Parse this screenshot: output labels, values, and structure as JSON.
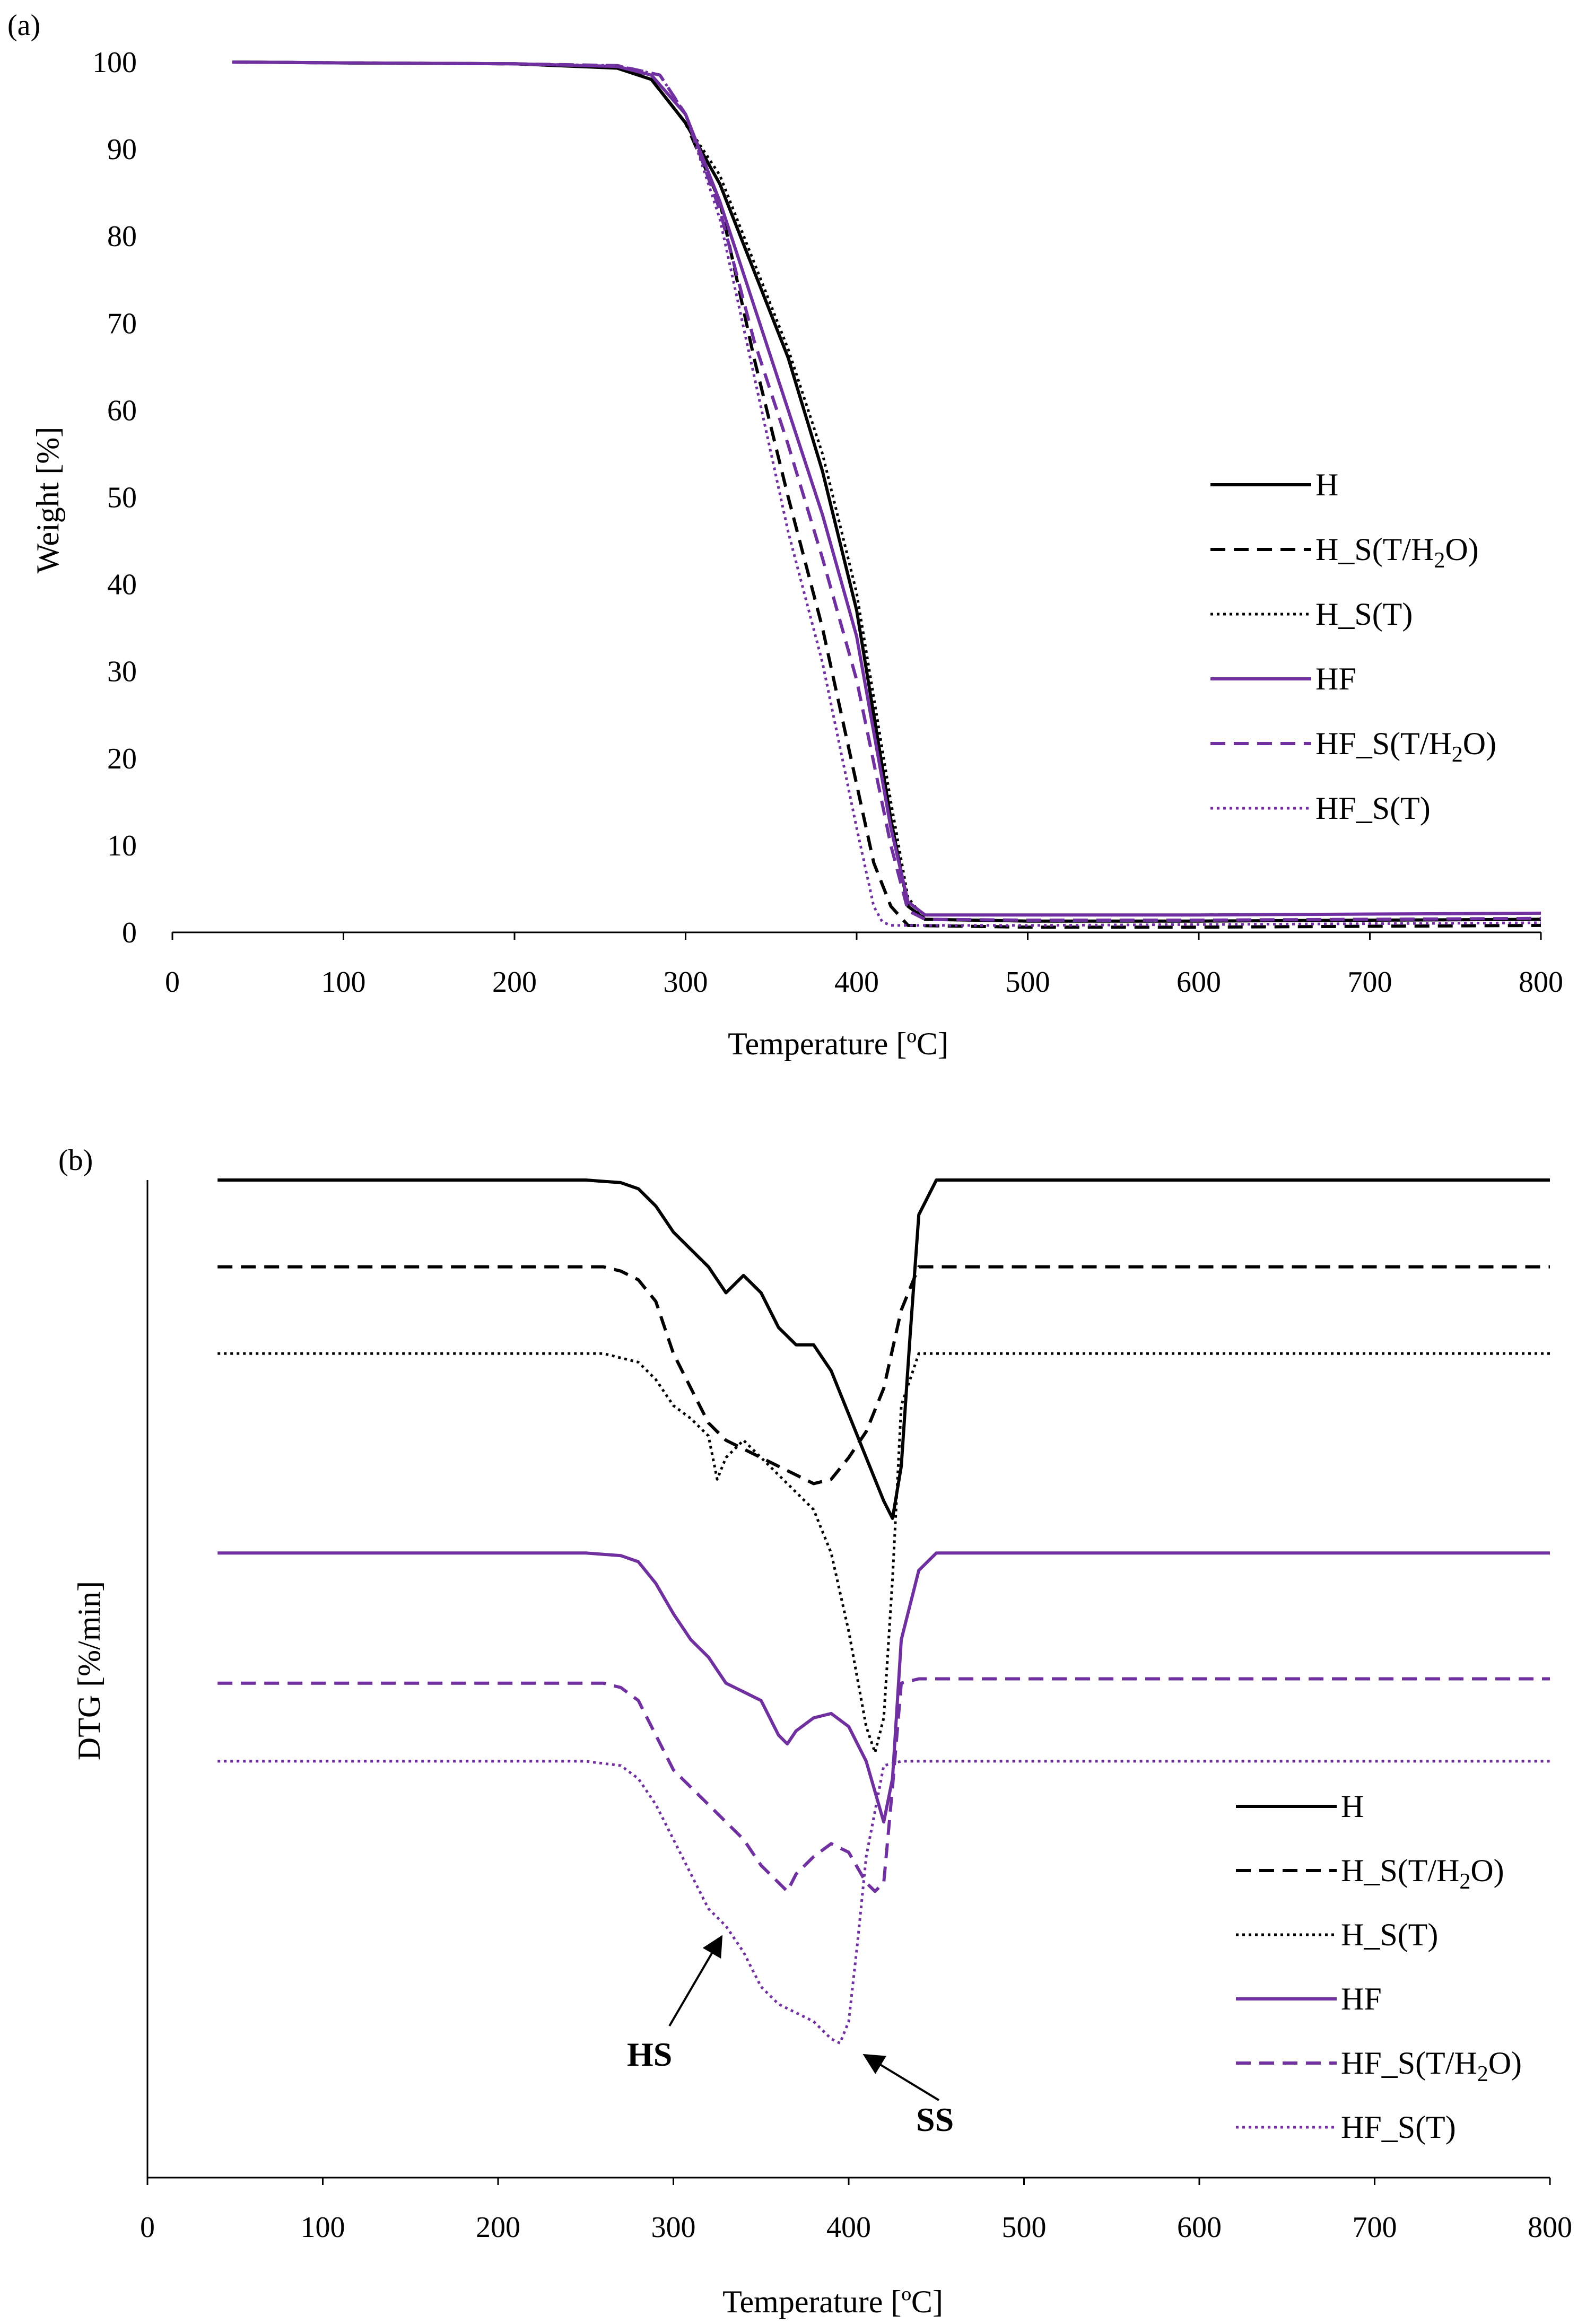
{
  "colors": {
    "black": "#000000",
    "purple": "#7030A0"
  },
  "panels": [
    {
      "id": "a",
      "label": "(a)",
      "ylabel": "Weight [%]",
      "xlabel": "Temperature [ºC]"
    },
    {
      "id": "b",
      "label": "(b)",
      "ylabel": "DTG [%/min]",
      "xlabel": "Temperature [ºC]",
      "annotations": [
        "HS",
        "SS"
      ]
    }
  ],
  "legend": [
    {
      "label": "H",
      "color": "black",
      "dash": "solid"
    },
    {
      "label": "H_S(T/H",
      "sub": "2",
      "tail": "O)",
      "color": "black",
      "dash": "dash"
    },
    {
      "label": "H_S(T)",
      "color": "black",
      "dash": "dot"
    },
    {
      "label": "HF",
      "color": "purple",
      "dash": "solid"
    },
    {
      "label": "HF_S(T/H",
      "sub": "2",
      "tail": "O)",
      "color": "purple",
      "dash": "dash"
    },
    {
      "label": "HF_S(T)",
      "color": "purple",
      "dash": "dot"
    }
  ],
  "chart_data": [
    {
      "type": "line",
      "panel": "a",
      "xlabel": "Temperature [ºC]",
      "ylabel": "Weight [%]",
      "xlim": [
        0,
        800
      ],
      "ylim": [
        0,
        100
      ],
      "xticks": [
        0,
        100,
        200,
        300,
        400,
        500,
        600,
        700,
        800
      ],
      "yticks": [
        0,
        10,
        20,
        30,
        40,
        50,
        60,
        70,
        80,
        90,
        100
      ],
      "grid": false,
      "legend_position": "right",
      "series": [
        {
          "name": "H",
          "color": "black",
          "dash": "solid",
          "x": [
            35,
            100,
            200,
            260,
            280,
            300,
            320,
            340,
            360,
            380,
            400,
            420,
            430,
            440,
            500,
            600,
            700,
            800
          ],
          "y": [
            100,
            99.9,
            99.8,
            99.3,
            98,
            93,
            86,
            76,
            66,
            53,
            37,
            13,
            3,
            1.5,
            1.3,
            1.3,
            1.4,
            1.5
          ]
        },
        {
          "name": "H_S(T/H2O)",
          "color": "black",
          "dash": "dash",
          "x": [
            35,
            100,
            200,
            260,
            280,
            300,
            320,
            340,
            360,
            380,
            400,
            410,
            420,
            430,
            500,
            600,
            700,
            800
          ],
          "y": [
            100,
            99.9,
            99.8,
            99.4,
            98,
            93,
            84,
            66,
            50,
            35,
            17,
            8,
            3,
            0.8,
            0.6,
            0.6,
            0.7,
            0.8
          ]
        },
        {
          "name": "H_S(T)",
          "color": "black",
          "dash": "dot",
          "x": [
            35,
            100,
            200,
            260,
            280,
            300,
            320,
            340,
            360,
            380,
            400,
            420,
            430,
            440,
            500,
            600,
            700,
            800
          ],
          "y": [
            100,
            99.9,
            99.8,
            99.4,
            98,
            93,
            87,
            77,
            67,
            55,
            39,
            15,
            4,
            1.5,
            1.3,
            1.3,
            1.4,
            1.5
          ]
        },
        {
          "name": "HF",
          "color": "purple",
          "dash": "solid",
          "x": [
            35,
            100,
            200,
            260,
            280,
            300,
            320,
            340,
            360,
            380,
            400,
            420,
            430,
            440,
            500,
            600,
            700,
            800
          ],
          "y": [
            100,
            99.9,
            99.8,
            99.5,
            98.5,
            94,
            84,
            72,
            60,
            48,
            34,
            12,
            3.5,
            2,
            2,
            2,
            2.1,
            2.2
          ]
        },
        {
          "name": "HF_S(T/H2O)",
          "color": "purple",
          "dash": "dash",
          "x": [
            35,
            100,
            200,
            260,
            285,
            300,
            320,
            340,
            360,
            380,
            400,
            420,
            430,
            440,
            500,
            600,
            700,
            800
          ],
          "y": [
            100,
            99.9,
            99.8,
            99.6,
            98.5,
            94,
            83,
            68,
            56,
            43,
            29,
            10,
            2.5,
            1.5,
            1.4,
            1.4,
            1.5,
            1.6
          ]
        },
        {
          "name": "HF_S(T)",
          "color": "purple",
          "dash": "dot",
          "x": [
            35,
            100,
            200,
            260,
            285,
            300,
            320,
            340,
            360,
            380,
            400,
            410,
            415,
            420,
            500,
            600,
            700,
            800
          ],
          "y": [
            100,
            99.9,
            99.8,
            99.6,
            98.5,
            94,
            82,
            64,
            46,
            31,
            12,
            3,
            1.2,
            0.8,
            0.8,
            0.9,
            1,
            1.1
          ]
        }
      ]
    },
    {
      "type": "line",
      "panel": "b",
      "xlabel": "Temperature [ºC]",
      "ylabel": "DTG [%/min]",
      "xlim": [
        0,
        800
      ],
      "xticks": [
        0,
        100,
        200,
        300,
        400,
        500,
        600,
        700,
        800
      ],
      "y_units": "relative (curves vertically offset, no y tick labels)",
      "ylim": [
        -115,
        0
      ],
      "grid": false,
      "legend_position": "bottom-right",
      "annotations": [
        {
          "text": "HS",
          "points_to_temperature": 325
        },
        {
          "text": "SS",
          "points_to_temperature": 403
        }
      ],
      "series": [
        {
          "name": "H",
          "color": "black",
          "dash": "solid",
          "x": [
            40,
            250,
            270,
            280,
            290,
            300,
            310,
            320,
            330,
            340,
            350,
            360,
            370,
            380,
            390,
            400,
            410,
            420,
            425,
            430,
            435,
            440,
            450,
            500,
            800
          ],
          "y": [
            0,
            0,
            -0.3,
            -1,
            -3,
            -6,
            -8,
            -10,
            -13,
            -11,
            -13,
            -17,
            -19,
            -19,
            -22,
            -27,
            -32,
            -37,
            -39,
            -33,
            -18,
            -4,
            0,
            0,
            0
          ]
        },
        {
          "name": "H_S(T/H2O)",
          "color": "black",
          "dash": "dash",
          "x": [
            40,
            260,
            270,
            280,
            290,
            300,
            310,
            320,
            330,
            340,
            350,
            360,
            370,
            380,
            390,
            400,
            410,
            420,
            430,
            440,
            800
          ],
          "y": [
            -10,
            -10,
            -10.5,
            -11.5,
            -14,
            -20,
            -24,
            -28,
            -30,
            -31,
            -32,
            -33,
            -34,
            -35,
            -34.5,
            -32,
            -29,
            -24,
            -15,
            -10,
            -10
          ]
        },
        {
          "name": "H_S(T)",
          "color": "black",
          "dash": "dot",
          "x": [
            40,
            260,
            280,
            290,
            300,
            310,
            320,
            325,
            330,
            340,
            350,
            360,
            370,
            380,
            390,
            400,
            410,
            415,
            420,
            425,
            430,
            440,
            800
          ],
          "y": [
            -20,
            -20,
            -21,
            -23,
            -26,
            -27.5,
            -29.5,
            -34.5,
            -32,
            -30,
            -32,
            -34,
            -36,
            -38,
            -43,
            -52,
            -63,
            -66,
            -62,
            -46,
            -26,
            -20,
            -20
          ]
        },
        {
          "name": "HF",
          "color": "purple",
          "dash": "solid",
          "x": [
            40,
            250,
            270,
            280,
            290,
            300,
            310,
            320,
            330,
            340,
            350,
            360,
            365,
            370,
            380,
            390,
            400,
            410,
            420,
            425,
            430,
            440,
            450,
            800
          ],
          "y": [
            -43,
            -43,
            -43.3,
            -44,
            -46.5,
            -50,
            -53,
            -55,
            -58,
            -59,
            -60,
            -64,
            -65,
            -63.5,
            -62,
            -61.5,
            -63,
            -67,
            -74,
            -69,
            -53,
            -45,
            -43,
            -43
          ]
        },
        {
          "name": "HF_S(T/H2O)",
          "color": "purple",
          "dash": "dash",
          "x": [
            40,
            260,
            270,
            280,
            290,
            300,
            310,
            320,
            330,
            340,
            350,
            360,
            365,
            370,
            380,
            390,
            400,
            410,
            415,
            420,
            425,
            430,
            440,
            800
          ],
          "y": [
            -58,
            -58,
            -58.5,
            -60,
            -64,
            -68,
            -70,
            -72,
            -74,
            -76,
            -79,
            -81,
            -82,
            -80,
            -78,
            -76.5,
            -77.5,
            -81,
            -82,
            -81,
            -70,
            -58,
            -57.5,
            -57.5
          ]
        },
        {
          "name": "HF_S(T)",
          "color": "purple",
          "dash": "dot",
          "x": [
            40,
            250,
            270,
            280,
            290,
            300,
            310,
            320,
            330,
            340,
            350,
            360,
            370,
            380,
            390,
            395,
            400,
            405,
            410,
            420,
            430,
            800
          ],
          "y": [
            -67,
            -67,
            -67.5,
            -69,
            -72,
            -76,
            -80,
            -84,
            -86,
            -89,
            -93,
            -95,
            -96,
            -97,
            -99,
            -99.5,
            -97,
            -88,
            -78,
            -67.5,
            -67,
            -67
          ]
        }
      ]
    }
  ]
}
